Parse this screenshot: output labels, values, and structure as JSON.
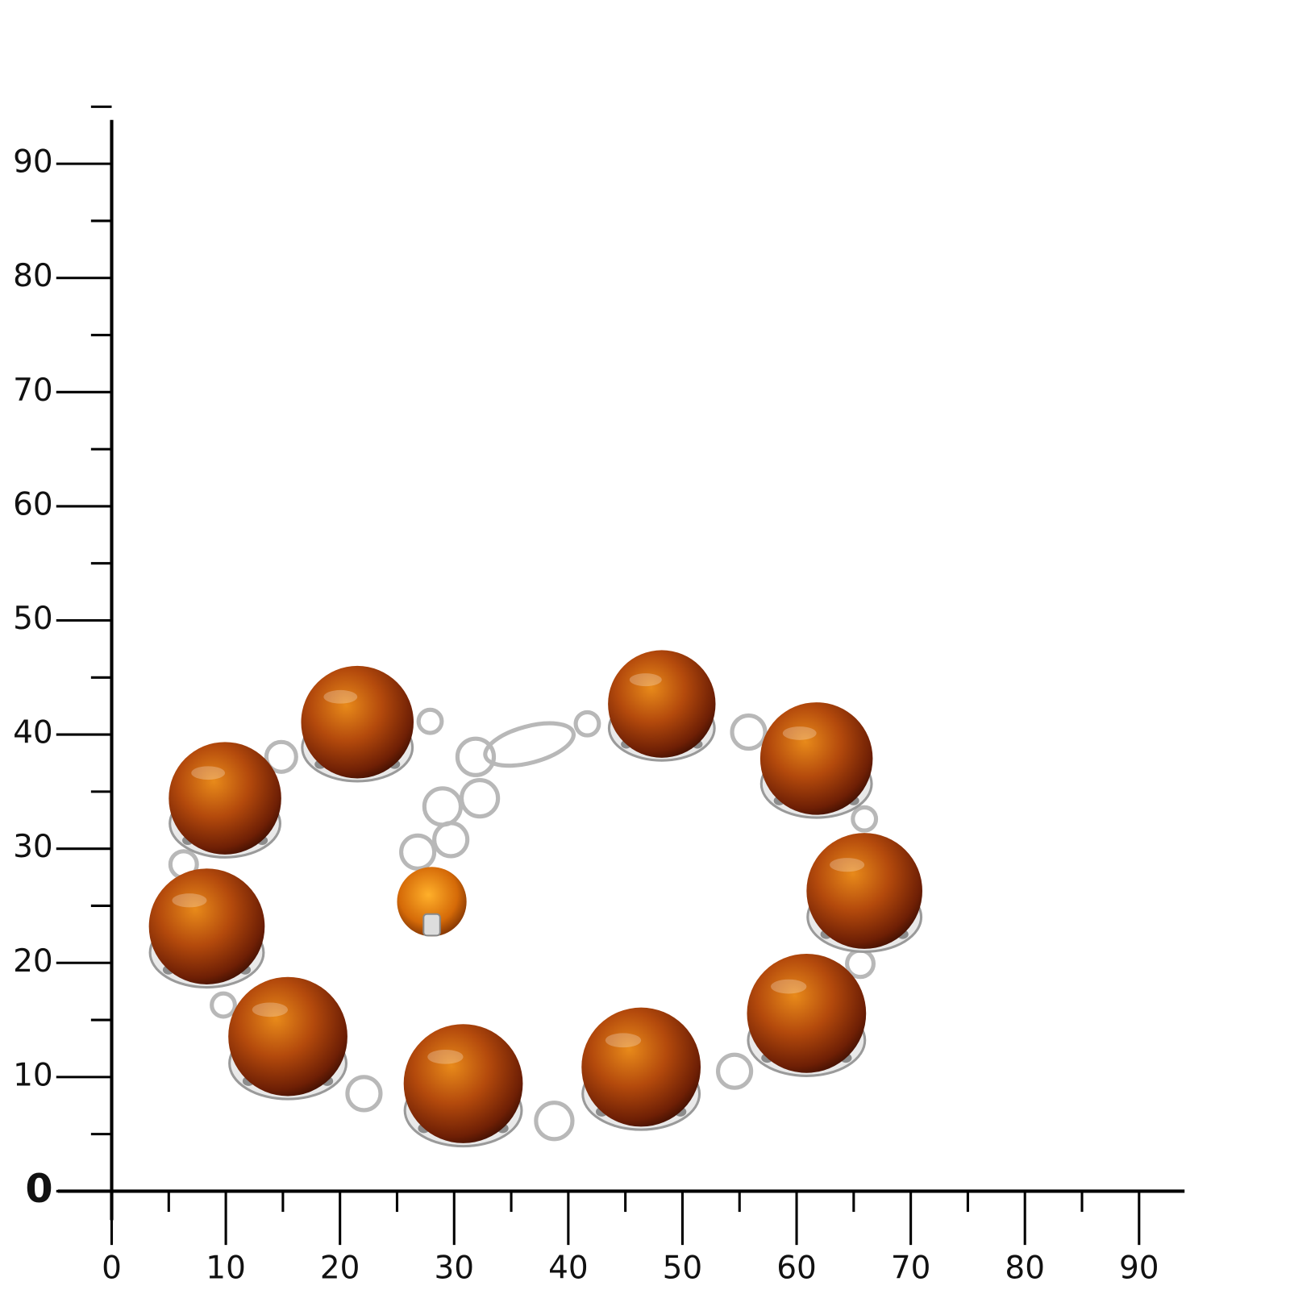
{
  "x_axis": {
    "ticks": [
      0,
      10,
      20,
      30,
      40,
      50,
      60,
      70,
      80,
      90
    ]
  },
  "y_axis": {
    "ticks": [
      0,
      10,
      20,
      30,
      40,
      50,
      60,
      70,
      80,
      90
    ]
  }
}
